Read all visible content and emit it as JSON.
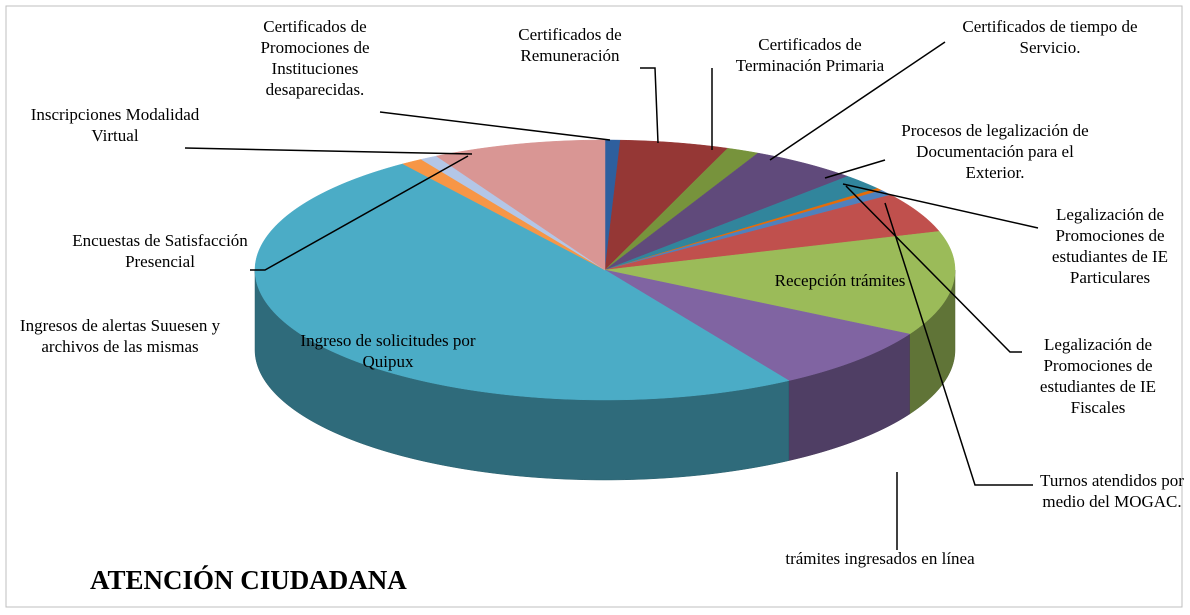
{
  "chart_data": {
    "type": "pie",
    "title": "ATENCIÓN CIUDADANA",
    "categories": [
      "Certificados de Promociones de Instituciones desaparecidas.",
      "Certificados de Remuneración",
      "Certificados de Terminación Primaria",
      "Certificados de tiempo de Servicio.",
      "Procesos de legalización de Documentación para el Exterior.",
      "Legalización de Promociones de estudiantes de IE Particulares",
      "Legalización de Promociones de estudiantes de IE Fiscales",
      "Turnos atendidos por medio del MOGAC.",
      "Recepción trámites",
      "trámites ingresados en línea",
      "Ingreso de solicitudes por Quipux",
      "Encuestas de Satisfacción Presencial",
      "Inscripciones Modalidad Virtual",
      "Ingresos de alertas Suuesen y archivos de las mismas"
    ],
    "values": [
      0.7,
      5,
      1.5,
      5,
      2,
      0.3,
      0.7,
      5,
      13,
      8,
      49,
      1,
      0.8,
      8
    ],
    "colors": [
      "#2e5f9e",
      "#953735",
      "#77933c",
      "#604a7b",
      "#31859c",
      "#e46c0a",
      "#4f81bd",
      "#c0504d",
      "#9bbb59",
      "#8064a2",
      "#4bacc6",
      "#f79646",
      "#b3c6e7",
      "#d99694"
    ]
  }
}
